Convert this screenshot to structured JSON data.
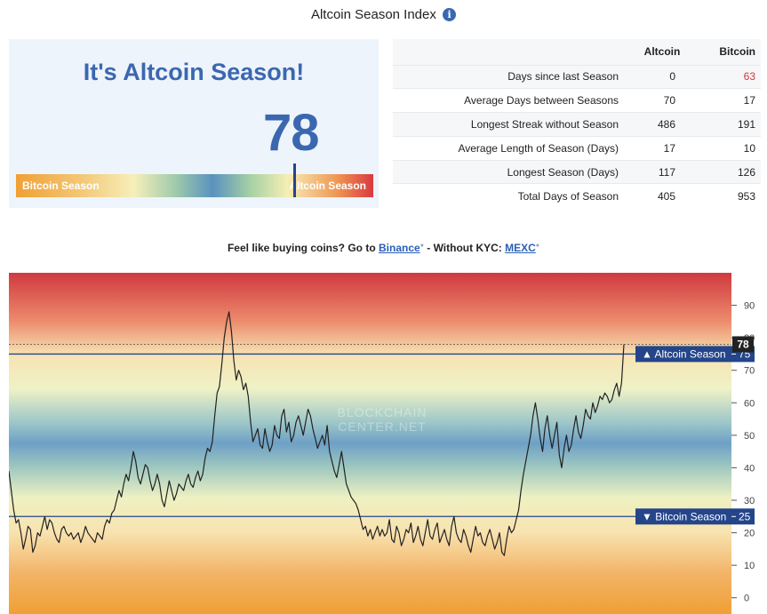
{
  "header": {
    "title": "Altcoin Season Index",
    "info_icon": "info-icon"
  },
  "season_panel": {
    "headline": "It's Altcoin Season!",
    "index_value": "78",
    "gauge": {
      "left_label": "Bitcoin Season",
      "right_label": "Altcoin Season",
      "value": 78,
      "min": 0,
      "max": 100
    }
  },
  "stats": {
    "headers": {
      "label": "",
      "altcoin": "Altcoin",
      "bitcoin": "Bitcoin"
    },
    "rows": [
      {
        "label": "Days since last Season",
        "altcoin": "0",
        "bitcoin": "63",
        "bitcoin_color": "#d0393f"
      },
      {
        "label": "Average Days between Seasons",
        "altcoin": "70",
        "bitcoin": "17"
      },
      {
        "label": "Longest Streak without Season",
        "altcoin": "486",
        "bitcoin": "191"
      },
      {
        "label": "Average Length of Season (Days)",
        "altcoin": "17",
        "bitcoin": "10"
      },
      {
        "label": "Longest Season (Days)",
        "altcoin": "117",
        "bitcoin": "126"
      },
      {
        "label": "Total Days of Season",
        "altcoin": "405",
        "bitcoin": "953"
      }
    ]
  },
  "promo": {
    "prefix": "Feel like buying coins? Go to ",
    "binance": "Binance",
    "middle": " - Without KYC: ",
    "mexc": "MEXC"
  },
  "chart_data": {
    "type": "line",
    "ylim": [
      -5,
      100
    ],
    "y_ticks": [
      "0",
      "10",
      "20",
      "30",
      "40",
      "50",
      "60",
      "70",
      "80",
      "90"
    ],
    "y_tick_values": [
      0,
      10,
      20,
      30,
      40,
      50,
      60,
      70,
      80,
      90
    ],
    "watermark": [
      "BLOCKCHAIN",
      "CENTER.NET"
    ],
    "current": {
      "label": "78",
      "value": 78
    },
    "thresholds": [
      {
        "name": "Altcoin Season",
        "label": "▲ Altcoin Season",
        "value_label": "75",
        "value": 75
      },
      {
        "name": "Bitcoin Season",
        "label": "▼ Bitcoin Season",
        "value_label": "25",
        "value": 25
      }
    ],
    "colors": {
      "line": "#222222",
      "threshold": "#24458a",
      "top": "#d0393f",
      "middle": "#5a92bf",
      "bottom": "#f0a034"
    },
    "series": [
      {
        "values": [
          39,
          33,
          27,
          23,
          24,
          20,
          15,
          18,
          22,
          21,
          14,
          16,
          20,
          19,
          22,
          25,
          21,
          24,
          23,
          20,
          18,
          17,
          21,
          22,
          20,
          19,
          20,
          18,
          19,
          20,
          17,
          19,
          22,
          20,
          19,
          18,
          17,
          20,
          19,
          18,
          22,
          24,
          23,
          26,
          27,
          30,
          33,
          31,
          35,
          38,
          36,
          40,
          45,
          42,
          37,
          35,
          38,
          41,
          40,
          36,
          33,
          35,
          38,
          35,
          30,
          28,
          32,
          36,
          33,
          30,
          32,
          35,
          34,
          33,
          36,
          38,
          35,
          34,
          37,
          39,
          36,
          38,
          43,
          46,
          45,
          48,
          56,
          63,
          65,
          72,
          80,
          85,
          88,
          82,
          73,
          67,
          70,
          68,
          64,
          66,
          62,
          54,
          48,
          50,
          52,
          47,
          46,
          52,
          48,
          45,
          47,
          53,
          50,
          49,
          56,
          58,
          51,
          54,
          48,
          50,
          54,
          56,
          53,
          50,
          54,
          58,
          56,
          52,
          49,
          46,
          48,
          50,
          47,
          53,
          45,
          42,
          39,
          37,
          41,
          45,
          40,
          35,
          33,
          31,
          30,
          29,
          27,
          24,
          21,
          22,
          19,
          21,
          18,
          20,
          22,
          19,
          21,
          19,
          20,
          24,
          18,
          17,
          22,
          20,
          16,
          18,
          21,
          20,
          23,
          17,
          19,
          22,
          18,
          16,
          20,
          24,
          19,
          18,
          21,
          23,
          17,
          19,
          21,
          18,
          16,
          22,
          25,
          20,
          18,
          17,
          21,
          19,
          16,
          14,
          18,
          22,
          19,
          20,
          17,
          16,
          19,
          21,
          18,
          15,
          17,
          20,
          14,
          13,
          18,
          22,
          20,
          21,
          24,
          27,
          33,
          38,
          42,
          46,
          50,
          56,
          60,
          55,
          49,
          45,
          52,
          56,
          50,
          46,
          50,
          54,
          44,
          40,
          46,
          50,
          45,
          47,
          52,
          56,
          51,
          49,
          53,
          58,
          56,
          55,
          60,
          57,
          59,
          62,
          61,
          63,
          62,
          60,
          61,
          64,
          66,
          62,
          66,
          78
        ]
      }
    ]
  }
}
